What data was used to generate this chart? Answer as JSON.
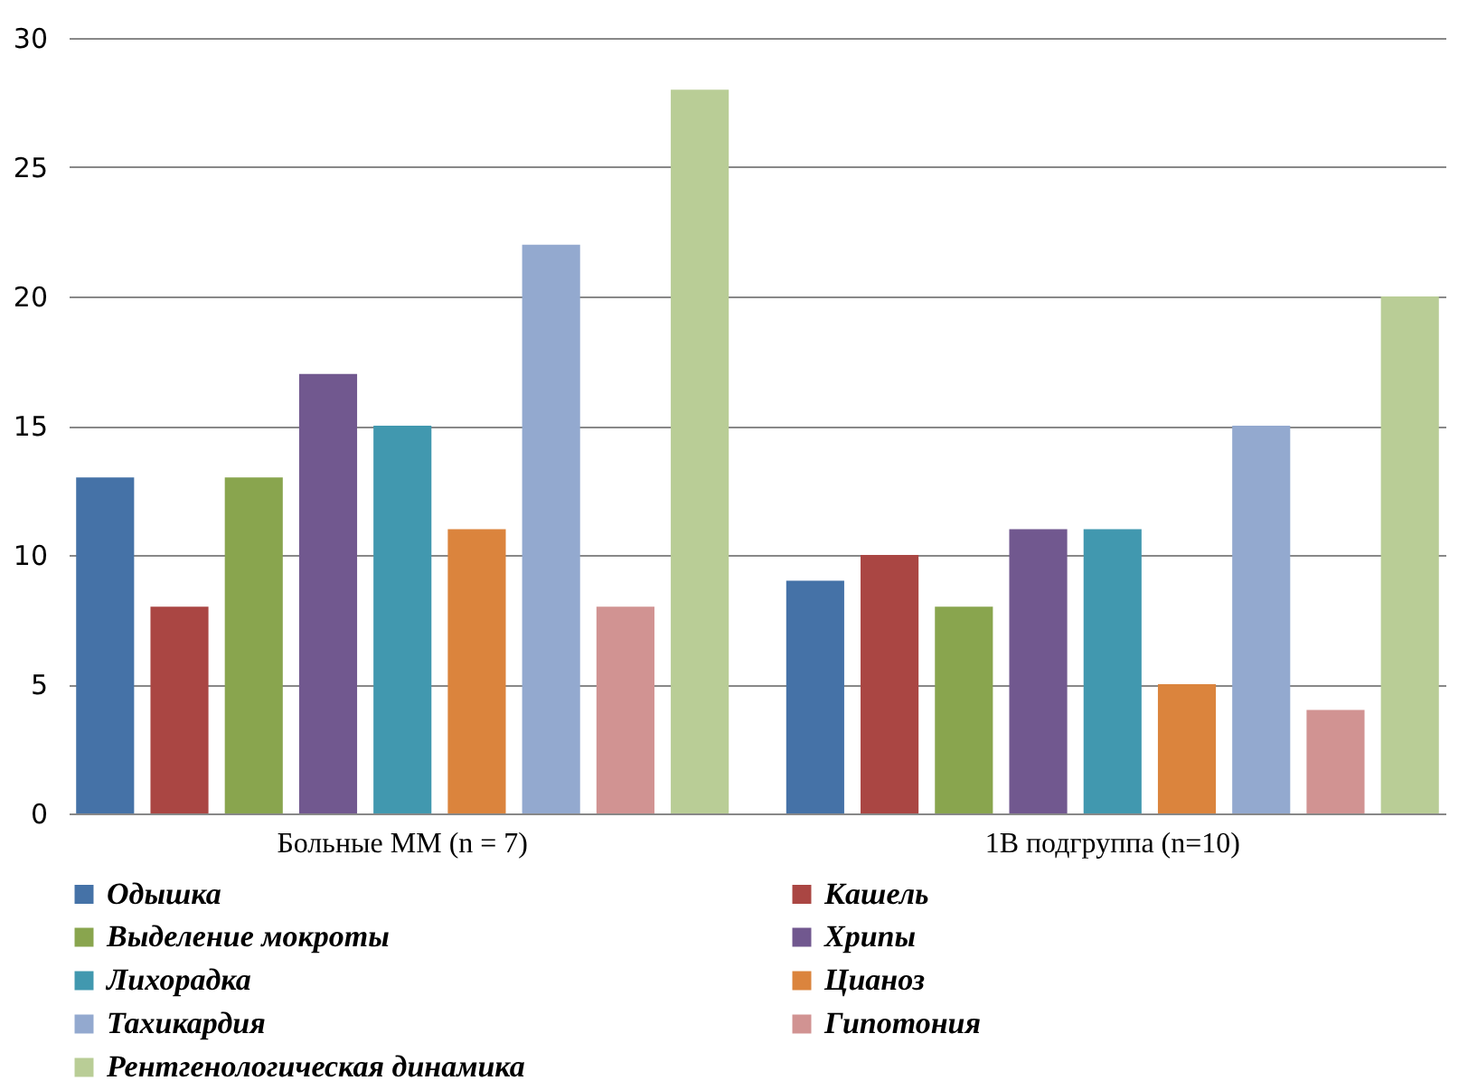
{
  "chart_data": {
    "type": "bar",
    "categories": [
      "Больные ММ (n = 7)",
      "1В подгруппа (n=10)"
    ],
    "series": [
      {
        "name": "Одышка",
        "color": "#4572a7",
        "values": [
          13,
          9
        ]
      },
      {
        "name": "Кашель",
        "color": "#aa4643",
        "values": [
          8,
          10
        ]
      },
      {
        "name": "Выделение мокроты",
        "color": "#89a54e",
        "values": [
          13,
          8
        ]
      },
      {
        "name": "Хрипы",
        "color": "#71588f",
        "values": [
          17,
          11
        ]
      },
      {
        "name": "Лихорадка",
        "color": "#4198af",
        "values": [
          15,
          11
        ]
      },
      {
        "name": "Цианоз",
        "color": "#db843d",
        "values": [
          11,
          5
        ]
      },
      {
        "name": "Тахикардия",
        "color": "#93a9cf",
        "values": [
          22,
          15
        ]
      },
      {
        "name": "Гипотония",
        "color": "#d19392",
        "values": [
          8,
          4
        ]
      },
      {
        "name": "Рентгенологическая  динамика",
        "color": "#b9cd96",
        "values": [
          28,
          20
        ]
      }
    ],
    "ylim": [
      0,
      30
    ],
    "yticks": [
      0,
      5,
      10,
      15,
      20,
      25,
      30
    ],
    "grid": "y",
    "legend": "bottom"
  }
}
